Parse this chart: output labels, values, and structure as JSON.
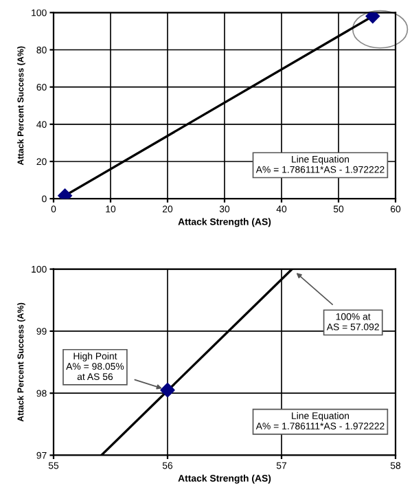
{
  "chart_data": [
    {
      "type": "line",
      "xlabel": "Attack Strength (AS)",
      "ylabel": "Attack Percent Success (A%)",
      "xlim": [
        0,
        60
      ],
      "ylim": [
        0,
        100
      ],
      "xticks": [
        0,
        10,
        20,
        30,
        40,
        50,
        60
      ],
      "yticks": [
        0,
        20,
        40,
        60,
        80,
        100
      ],
      "grid": true,
      "marker": "diamond",
      "series": [
        {
          "color": "#000080",
          "x": [
            2,
            56
          ],
          "values": [
            1.6,
            98.05
          ]
        }
      ],
      "annotations": [
        "Line Equation\nA% = 1.786111*AS - 1.972222"
      ]
    },
    {
      "type": "line",
      "xlabel": "Attack Strength (AS)",
      "ylabel": "Attack Percent Success (A%)",
      "xlim": [
        55,
        58
      ],
      "ylim": [
        97,
        100
      ],
      "xticks": [
        55,
        56,
        57,
        58
      ],
      "yticks": [
        97,
        98,
        99,
        100
      ],
      "grid": true,
      "series": [
        {
          "color": "#000000",
          "x": [
            55.42,
            57.092
          ],
          "values": [
            97,
            100
          ],
          "marker": "none"
        },
        {
          "type": "scatter",
          "color": "#000080",
          "x": [
            56
          ],
          "values": [
            98.05
          ],
          "marker": "diamond"
        }
      ],
      "annotations": [
        {
          "text": "High Point\nA% = 98.05%\nat AS 56",
          "x": 56,
          "y": 98.05
        },
        {
          "text": "100% at\nAS = 57.092",
          "x": 57.092,
          "y": 100
        },
        "Line Equation\nA% = 1.786111*AS - 1.972222"
      ]
    }
  ]
}
